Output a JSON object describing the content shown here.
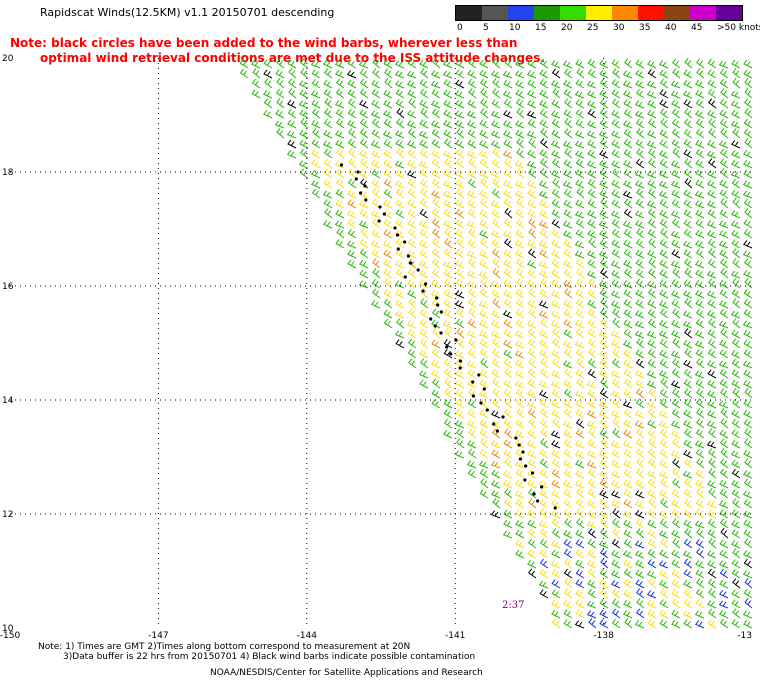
{
  "title": "Rapidscat Winds(12.5KM) v1.1 20150701 descending",
  "notes": {
    "line1": "Note: black circles have been added to the wind barbs, wherever less than",
    "line2": "optimal wind retrieval conditions are met due to the ISS attitude changes."
  },
  "legend": {
    "unit": "knots",
    "items": [
      {
        "label": "0",
        "color": "#222222"
      },
      {
        "label": "5",
        "color": "#555555"
      },
      {
        "label": "10",
        "color": "#2244ee"
      },
      {
        "label": "15",
        "color": "#1a9900"
      },
      {
        "label": "20",
        "color": "#33dd00"
      },
      {
        "label": "25",
        "color": "#ffee00"
      },
      {
        "label": "30",
        "color": "#ff8800"
      },
      {
        "label": "35",
        "color": "#ff1100"
      },
      {
        "label": "40",
        "color": "#8b4513"
      },
      {
        "label": "45",
        "color": "#cc00cc"
      },
      {
        "label": ">50",
        "color": "#660099"
      }
    ],
    "last_label": ">50 knots"
  },
  "map": {
    "lon_labels": [
      "-150",
      "-147",
      "-144",
      "-141",
      "-138",
      "-13"
    ],
    "lat_labels": [
      "20",
      "18",
      "16",
      "14",
      "12",
      "10"
    ],
    "lon_range": [
      -150,
      -135
    ],
    "lat_range": [
      10,
      20
    ],
    "pass_time": "2:37"
  },
  "footer": {
    "line1": "Note: 1) Times are GMT 2)Times along bottom correspond to measurement at 20N",
    "line2": "3)Data buffer is 22 hrs from 20150701 4) Black wind barbs indicate possible contamination",
    "line3": "NOAA/NESDIS/Center for Satellite Applications and Research"
  },
  "barb_colors": {
    "green": "#22bb00",
    "yellow": "#ffdd00",
    "orange": "#ee8800",
    "blue": "#1133dd",
    "black": "#000000",
    "grid": "#000000"
  }
}
